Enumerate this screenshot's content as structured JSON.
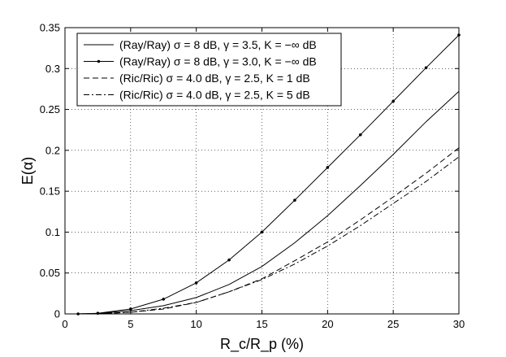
{
  "chart_data": {
    "type": "line",
    "xlabel": "R_c/R_p (%)",
    "ylabel": "E(α)",
    "xlim": [
      0,
      30
    ],
    "ylim": [
      0,
      0.35
    ],
    "xticks": [
      0,
      5,
      10,
      15,
      20,
      25,
      30
    ],
    "yticks": [
      0,
      0.05,
      0.1,
      0.15,
      0.2,
      0.25,
      0.3,
      0.35
    ],
    "grid": true,
    "legend_position": "top-left",
    "series": [
      {
        "name": "(Ray/Ray) σ = 8 dB, γ = 3.5, K = −∞ dB",
        "style": "solid",
        "x": [
          1,
          2.5,
          5,
          7.5,
          10,
          12.5,
          15,
          17.5,
          20,
          22.5,
          25,
          27.5,
          30
        ],
        "values": [
          0.0,
          0.0005,
          0.004,
          0.01,
          0.02,
          0.036,
          0.058,
          0.087,
          0.12,
          0.157,
          0.195,
          0.235,
          0.272
        ]
      },
      {
        "name": "(Ray/Ray) σ = 8 dB, γ = 3.0, K = −∞ dB",
        "style": "solid-marker",
        "x": [
          1,
          2.5,
          5,
          7.5,
          10,
          12.5,
          15,
          17.5,
          20,
          22.5,
          25,
          27.5,
          30
        ],
        "values": [
          0.0,
          0.0008,
          0.006,
          0.018,
          0.038,
          0.066,
          0.1,
          0.139,
          0.179,
          0.219,
          0.26,
          0.301,
          0.341
        ]
      },
      {
        "name": "(Ric/Ric) σ = 4.0 dB, γ = 2.5, K = 1 dB",
        "style": "dashed",
        "x": [
          1,
          2.5,
          5,
          7.5,
          10,
          12.5,
          15,
          17.5,
          20,
          22.5,
          25,
          27.5,
          30
        ],
        "values": [
          0.0,
          0.0003,
          0.002,
          0.006,
          0.014,
          0.027,
          0.043,
          0.065,
          0.088,
          0.115,
          0.143,
          0.172,
          0.203
        ]
      },
      {
        "name": "(Ric/Ric) σ = 4.0 dB, γ = 2.5, K = 5 dB",
        "style": "dashdot",
        "x": [
          1,
          2.5,
          5,
          7.5,
          10,
          12.5,
          15,
          17.5,
          20,
          22.5,
          25,
          27.5,
          30
        ],
        "values": [
          0.0,
          0.0003,
          0.002,
          0.007,
          0.014,
          0.027,
          0.042,
          0.061,
          0.083,
          0.108,
          0.135,
          0.162,
          0.192
        ]
      }
    ]
  }
}
